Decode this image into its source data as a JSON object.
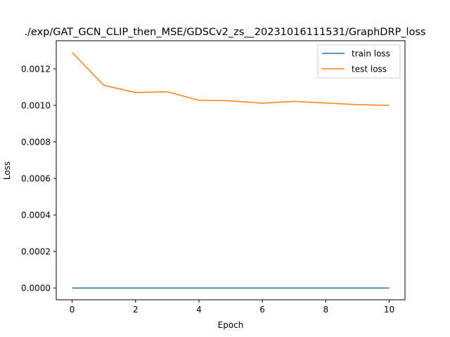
{
  "chart_data": {
    "type": "line",
    "title": "./exp/GAT_GCN_CLIP_then_MSE/GDSCv2_zs__20231016111531/GraphDRP_loss",
    "xlabel": "Epoch",
    "ylabel": "Loss",
    "xlim": [
      -0.5,
      10.5
    ],
    "ylim": [
      -6.45e-05,
      0.001354
    ],
    "x_ticks": [
      0,
      2,
      4,
      6,
      8,
      10
    ],
    "x_tick_labels": [
      "0",
      "2",
      "4",
      "6",
      "8",
      "10"
    ],
    "y_ticks": [
      0,
      0.0002,
      0.0004,
      0.0006,
      0.0008,
      0.001,
      0.0012
    ],
    "y_tick_labels": [
      "0.0000",
      "0.0002",
      "0.0004",
      "0.0006",
      "0.0008",
      "0.0010",
      "0.0012"
    ],
    "x": [
      0,
      1,
      2,
      3,
      4,
      5,
      6,
      7,
      8,
      9,
      10
    ],
    "series": [
      {
        "name": "train loss",
        "color": "#1f77b4",
        "values": [
          0,
          0,
          0,
          0,
          0,
          0,
          0,
          0,
          0,
          0,
          0
        ]
      },
      {
        "name": "test loss",
        "color": "#ff7f0e",
        "values": [
          0.00129,
          0.00111,
          0.00107,
          0.001075,
          0.001028,
          0.001025,
          0.001012,
          0.001022,
          0.001013,
          0.001004,
          0.001
        ]
      }
    ],
    "legend_position": "top-right",
    "grid": false
  }
}
